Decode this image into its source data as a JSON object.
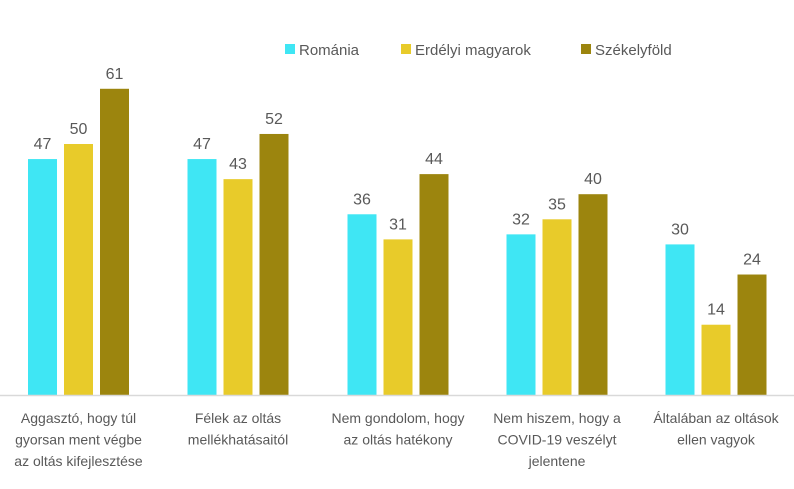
{
  "chart_data": {
    "type": "bar",
    "categories": [
      [
        "Aggasztó, hogy túl",
        "gyorsan ment végbe",
        "az oltás kifejlesztése"
      ],
      [
        "Félek az oltás",
        "mellékhatásaitól"
      ],
      [
        "Nem gondolom, hogy",
        "az oltás hatékony"
      ],
      [
        "Nem hiszem, hogy a",
        "COVID-19 veszélyt",
        "jelentene"
      ],
      [
        "Általában az oltások",
        "ellen vagyok"
      ]
    ],
    "series": [
      {
        "name": "Románia",
        "color": "#3FE6F4",
        "values": [
          47,
          47,
          36,
          32,
          30
        ]
      },
      {
        "name": "Erdélyi magyarok",
        "color": "#E8CB2A",
        "values": [
          50,
          43,
          31,
          35,
          14
        ]
      },
      {
        "name": "Székelyföld",
        "color": "#9C850E",
        "values": [
          61,
          52,
          44,
          40,
          24
        ]
      }
    ],
    "ylim": [
      0,
      65
    ],
    "grid": false,
    "data_labels": true,
    "legend": "top"
  }
}
